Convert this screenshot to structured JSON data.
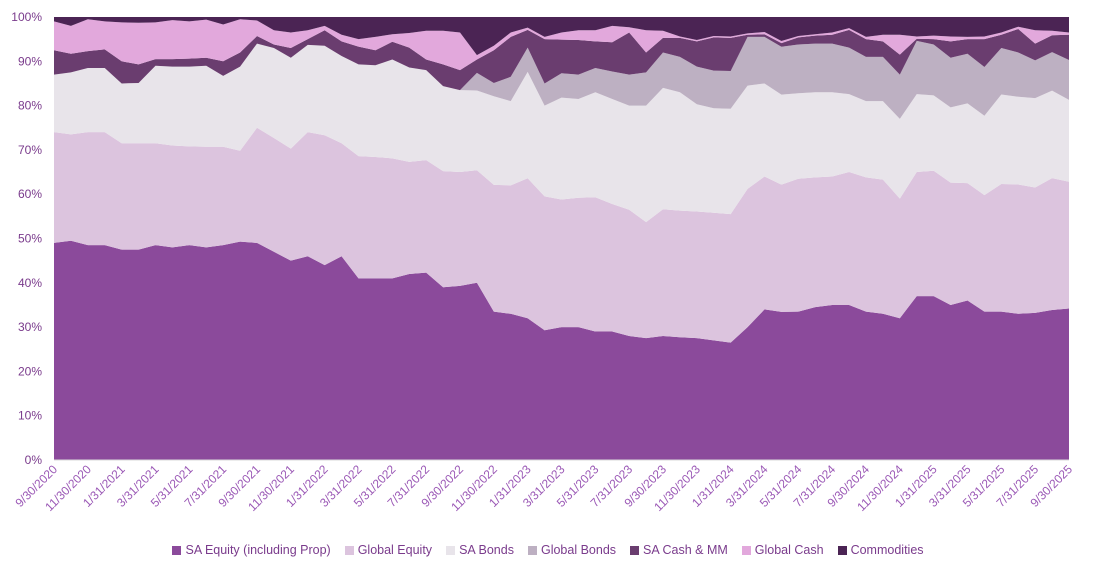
{
  "chart_data": {
    "type": "area",
    "stacked": true,
    "normalized": true,
    "title": "",
    "xlabel": "",
    "ylabel": "",
    "ylim": [
      0,
      100
    ],
    "yticks": [
      "0%",
      "10%",
      "20%",
      "30%",
      "40%",
      "50%",
      "60%",
      "70%",
      "80%",
      "90%",
      "100%"
    ],
    "x_tick_labels": [
      "9/30/2020",
      "11/30/2020",
      "1/31/2021",
      "3/31/2021",
      "5/31/2021",
      "7/31/2021",
      "9/30/2021",
      "11/30/2021",
      "1/31/2022",
      "3/31/2022",
      "5/31/2022",
      "7/31/2022",
      "9/30/2022",
      "11/30/2022",
      "1/31/2023",
      "3/31/2023",
      "5/31/2023",
      "7/31/2023",
      "9/30/2023",
      "11/30/2023",
      "1/31/2024",
      "3/31/2024",
      "5/31/2024",
      "7/31/2024",
      "9/30/2024",
      "11/30/2024",
      "1/31/2025",
      "3/31/2025",
      "5/31/2025",
      "7/31/2025",
      "9/30/2025"
    ],
    "x_tick_every": 2,
    "legend_position": "bottom",
    "grid": false,
    "x": [
      "9/30/2020",
      "10/31/2020",
      "11/30/2020",
      "12/31/2020",
      "1/31/2021",
      "2/28/2021",
      "3/31/2021",
      "4/30/2021",
      "5/31/2021",
      "6/30/2021",
      "7/31/2021",
      "8/31/2021",
      "9/30/2021",
      "10/31/2021",
      "11/30/2021",
      "12/31/2021",
      "1/31/2022",
      "2/28/2022",
      "3/31/2022",
      "4/30/2022",
      "5/31/2022",
      "6/30/2022",
      "7/31/2022",
      "8/31/2022",
      "9/30/2022",
      "10/31/2022",
      "11/30/2022",
      "12/31/2022",
      "1/31/2023",
      "2/28/2023",
      "3/31/2023",
      "4/30/2023",
      "5/31/2023",
      "6/30/2023",
      "7/31/2023",
      "8/31/2023",
      "9/30/2023",
      "10/31/2023",
      "11/30/2023",
      "12/31/2023",
      "1/31/2024",
      "2/29/2024",
      "3/31/2024",
      "4/30/2024",
      "5/31/2024",
      "6/30/2024",
      "7/31/2024",
      "8/31/2024",
      "9/30/2024",
      "10/31/2024",
      "11/30/2024",
      "12/31/2024",
      "1/31/2025",
      "2/28/2025",
      "3/31/2025",
      "4/30/2025",
      "5/31/2025",
      "6/30/2025",
      "7/31/2025",
      "8/31/2025",
      "9/30/2025"
    ],
    "series": [
      {
        "name": "SA Equity (including Prop)",
        "color": "#8b4a9b",
        "values": [
          49,
          49.5,
          48.5,
          48.5,
          47.5,
          47.5,
          48.5,
          48,
          48.5,
          48,
          48.5,
          49.3,
          49,
          47,
          45,
          46,
          44,
          46,
          41,
          41,
          41,
          42,
          42.3,
          39,
          39.3,
          40,
          33.5,
          33,
          32,
          29.3,
          30,
          30,
          29,
          29,
          28,
          27.5,
          28,
          27.7,
          27.5,
          27,
          26.5,
          30,
          34,
          33.4,
          33.5,
          34.5,
          35,
          35,
          33.5,
          33,
          32,
          37,
          37,
          35,
          36,
          33.5,
          33.5,
          33,
          33.2,
          33.8,
          34.2
        ]
      },
      {
        "name": "Global Equity",
        "color": "#dcc4de",
        "values": [
          25,
          24,
          25.5,
          25.5,
          24,
          24,
          23,
          23,
          22.3,
          22.7,
          22.2,
          20.5,
          26,
          25.7,
          25.3,
          28,
          29.3,
          25.5,
          27.6,
          27.4,
          27.1,
          25.3,
          25.4,
          26.2,
          25.7,
          25.4,
          28.6,
          29,
          31.6,
          30.2,
          28.8,
          29.2,
          30.3,
          28.8,
          28.5,
          26.2,
          28.6,
          28.6,
          28.6,
          28.8,
          29,
          31.2,
          30,
          28.7,
          30,
          29.3,
          29,
          30,
          30.3,
          30.3,
          27,
          28,
          28.3,
          27.6,
          26.5,
          26.3,
          28.8,
          29.2,
          28.3,
          29.7,
          28.6
        ]
      },
      {
        "name": "SA Bonds",
        "color": "#e8e4ea",
        "values": [
          13,
          14,
          14.5,
          14.5,
          13.5,
          13.6,
          17.5,
          17.8,
          18,
          18.3,
          16,
          19,
          19,
          20.3,
          20.5,
          19.7,
          20.2,
          19.7,
          20.7,
          20.7,
          22.3,
          21.3,
          20.3,
          19.2,
          18.5,
          18,
          20,
          19,
          24,
          20.5,
          23,
          22.3,
          23.7,
          23.7,
          23.5,
          26.3,
          27.4,
          26.7,
          24.2,
          23.6,
          23.8,
          23.3,
          21,
          20.3,
          19.3,
          19.2,
          19,
          17.6,
          17.2,
          17.7,
          18,
          17.6,
          17,
          17,
          18,
          17.9,
          20.2,
          19.8,
          20.2,
          19.7,
          18.5
        ]
      },
      {
        "name": "Global Bonds",
        "color": "#bdb0c2",
        "values": [
          0,
          0,
          0,
          0,
          0,
          0,
          0,
          0,
          0,
          0,
          0,
          0,
          0,
          0,
          0,
          0,
          0,
          0,
          0,
          0,
          0,
          0,
          0,
          0,
          0,
          4,
          3,
          5.5,
          5.5,
          5,
          5.5,
          5.5,
          5.5,
          6.2,
          7,
          7.5,
          8,
          8,
          8.5,
          8.5,
          8.5,
          11,
          10.5,
          10.8,
          11,
          11,
          11,
          10.5,
          10,
          10,
          10,
          12,
          11.5,
          11.2,
          11.2,
          11,
          10.5,
          10,
          8.5,
          8.7,
          9
        ]
      },
      {
        "name": "SA Cash & MM",
        "color": "#6a3d6f",
        "values": [
          5.5,
          4.2,
          3.8,
          4.2,
          5,
          4.2,
          1.5,
          1.7,
          1.8,
          1.8,
          3.3,
          3.2,
          1.7,
          0.8,
          2.2,
          1.3,
          3.5,
          3.3,
          4,
          3.4,
          4,
          4.5,
          2.4,
          4.9,
          4.5,
          3,
          7.4,
          9,
          4,
          10,
          7.6,
          7.8,
          6,
          6.6,
          9.5,
          4.5,
          3.3,
          4.3,
          5.7,
          7.5,
          7.5,
          0.5,
          0.6,
          0.8,
          1.6,
          1.8,
          2,
          4,
          4,
          3.5,
          4.5,
          0.5,
          1.2,
          3.7,
          3.3,
          6.3,
          3,
          5.3,
          3.8,
          3.8,
          5.7
        ]
      },
      {
        "name": "Global Cash",
        "color": "#e2a8dc",
        "values": [
          6.5,
          6.3,
          7.2,
          6.3,
          8.8,
          9.4,
          8.3,
          8.8,
          8.4,
          8.6,
          8.3,
          7.5,
          3.5,
          3.2,
          3.5,
          2,
          1,
          1.5,
          1.7,
          3,
          1.7,
          3.3,
          6.5,
          7.6,
          8.5,
          1,
          1,
          1,
          0.5,
          0.5,
          1.6,
          2.2,
          2.5,
          3.7,
          1.2,
          5,
          1.6,
          0.3,
          0.3,
          0.3,
          0.3,
          0.3,
          0.5,
          0.5,
          0.3,
          0.3,
          0.5,
          0.4,
          0.5,
          1.5,
          4.5,
          0.5,
          0.8,
          1.1,
          0.5,
          0.6,
          0.5,
          0.5,
          3,
          1,
          0.5
        ]
      },
      {
        "name": "Commodities",
        "color": "#4b2454",
        "values": [
          1,
          2,
          0.5,
          1,
          1.2,
          1.3,
          1.2,
          0.7,
          1,
          0.6,
          1.7,
          0.5,
          0.8,
          3,
          3.5,
          3,
          2,
          4,
          5,
          4.5,
          3.9,
          3.6,
          3.1,
          3.1,
          3.5,
          8.6,
          6.5,
          3.5,
          2.4,
          4.5,
          3.5,
          3,
          3,
          2,
          2.3,
          3,
          3.1,
          4.4,
          5.2,
          4.3,
          4.4,
          3.7,
          3.4,
          5.4,
          4.3,
          3.9,
          3.5,
          2.5,
          4.5,
          4,
          4,
          4.4,
          4.2,
          4.4,
          4.5,
          4.4,
          3.5,
          2.2,
          3,
          3.1,
          3.5
        ]
      }
    ]
  }
}
